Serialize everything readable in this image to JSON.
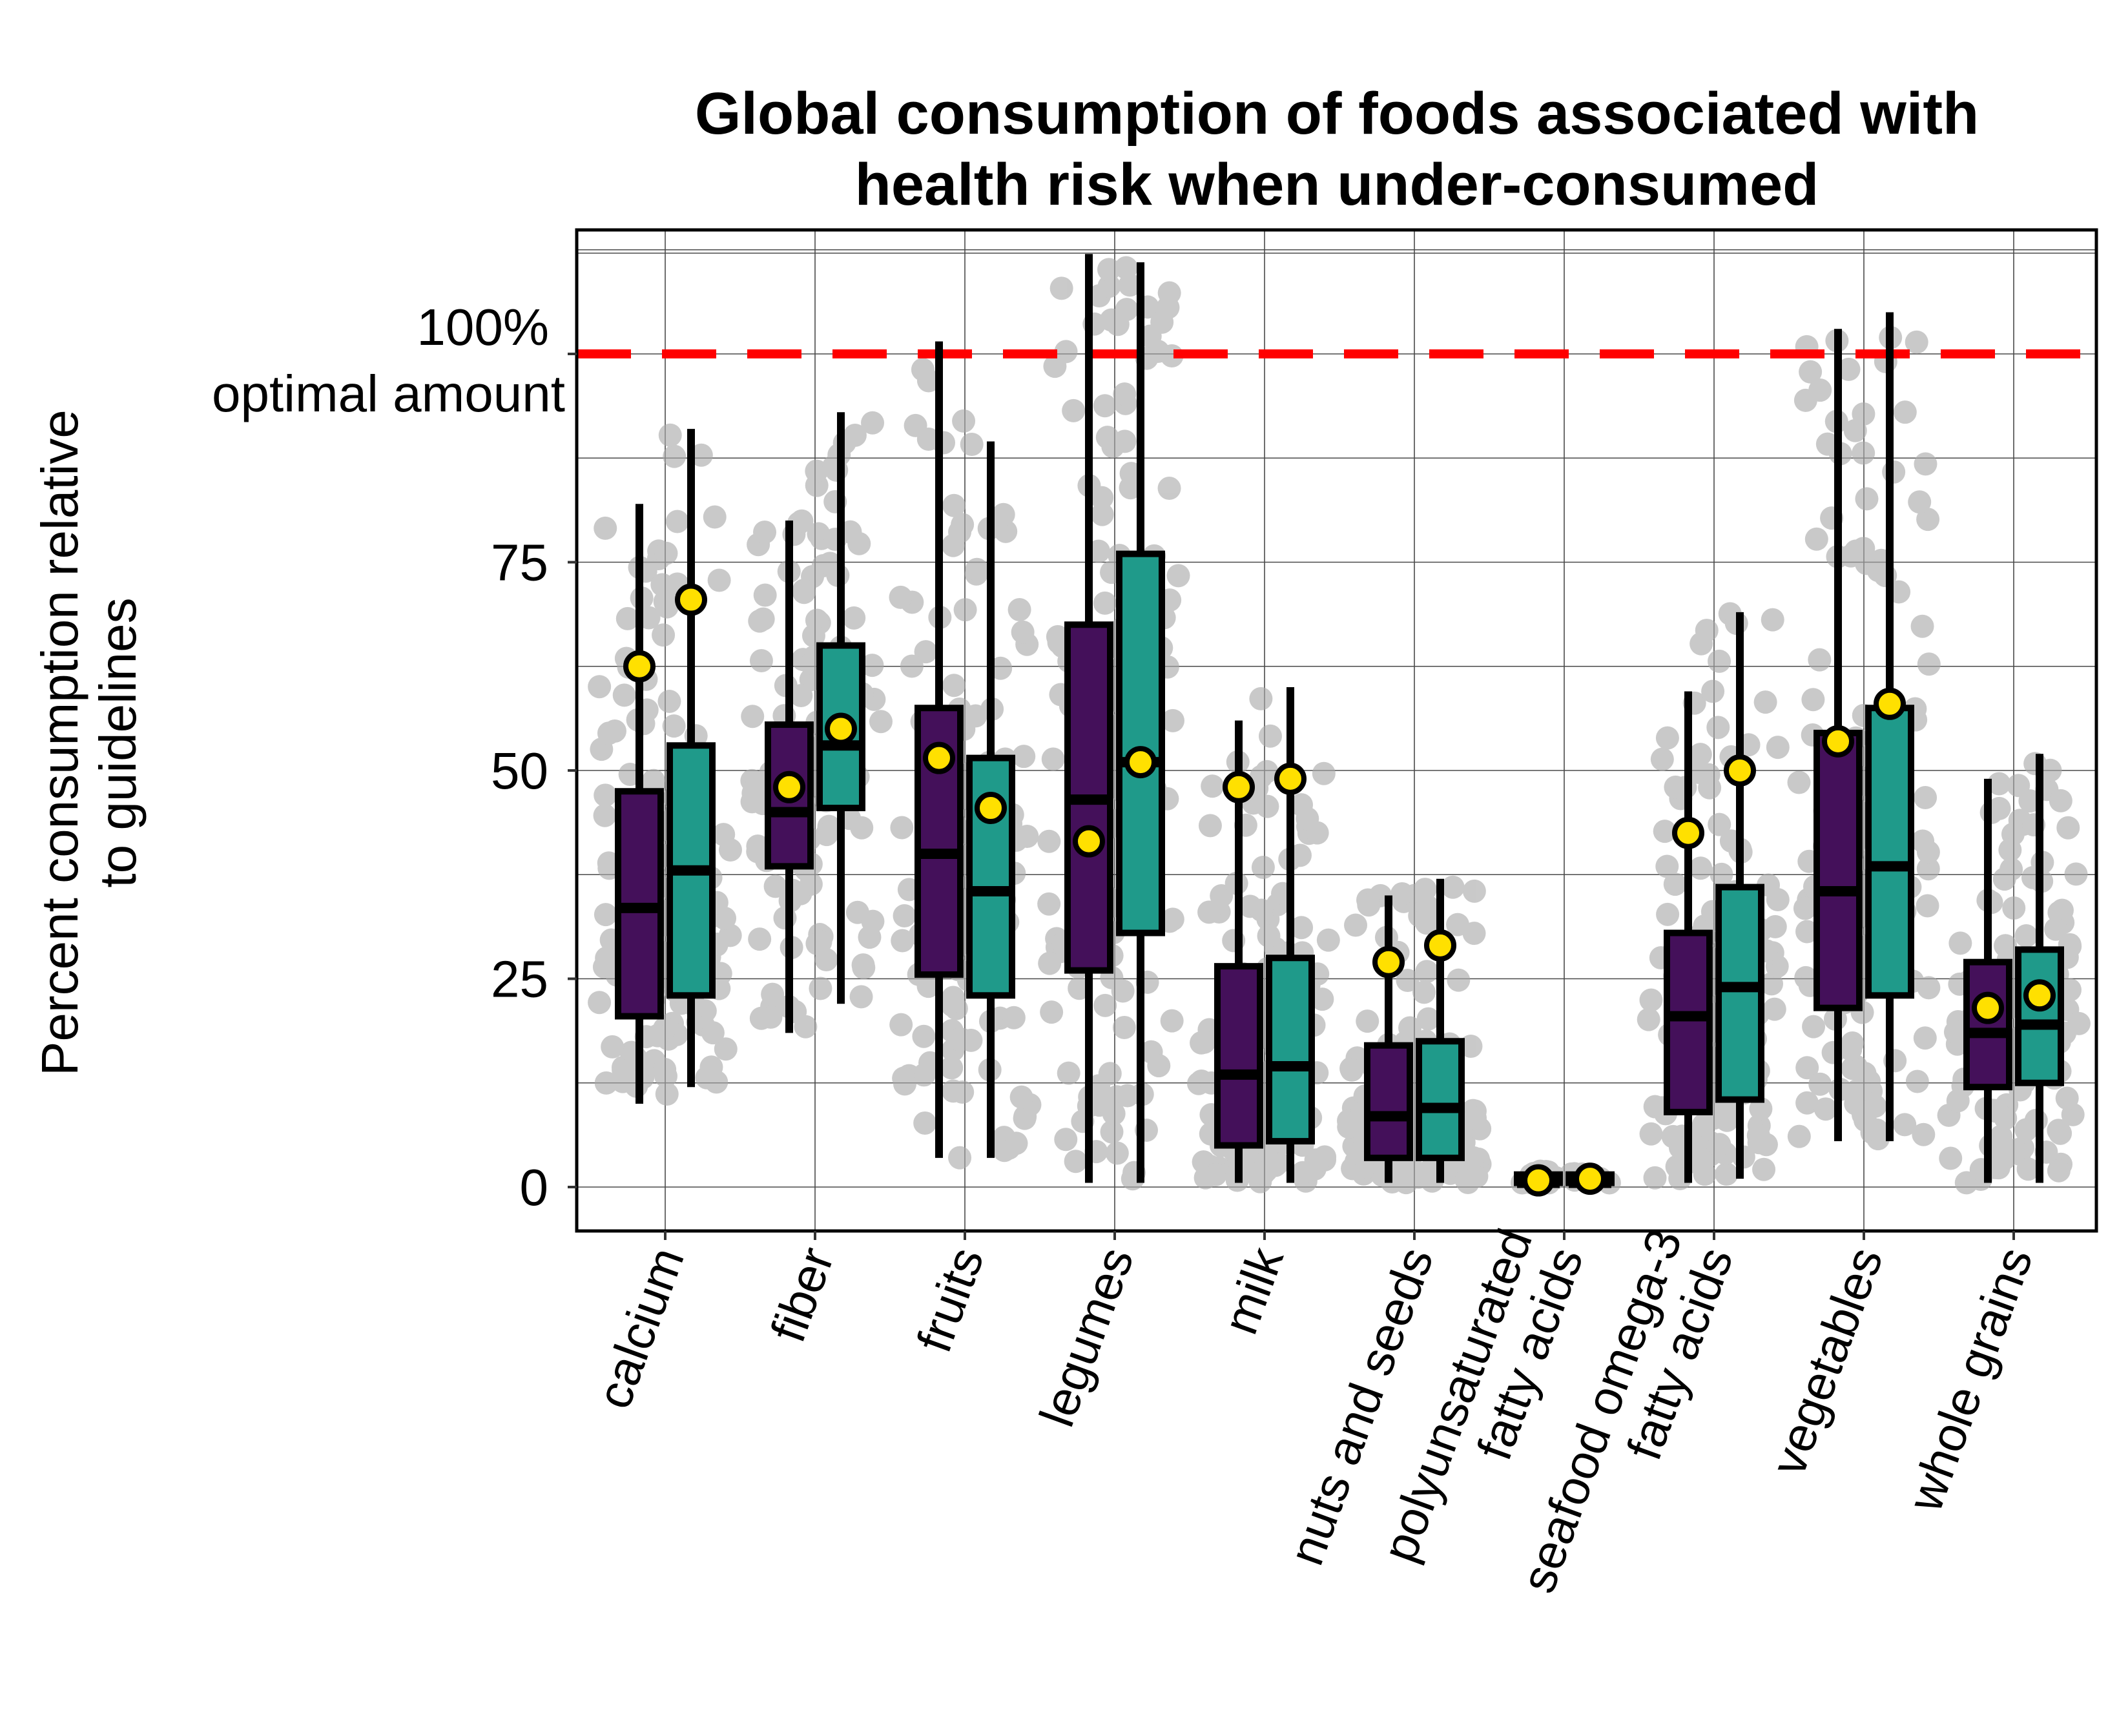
{
  "chart_data": {
    "type": "box",
    "title": [
      "Global consumption of foods associated with",
      "health risk when under-consumed"
    ],
    "ylabel": [
      "Percent consumption relative",
      "to guidelines"
    ],
    "ylim": [
      -10,
      118
    ],
    "yticks": [
      {
        "value": 0,
        "label": "0"
      },
      {
        "value": 25,
        "label": "25"
      },
      {
        "value": 50,
        "label": "50"
      },
      {
        "value": 75,
        "label": "75"
      }
    ],
    "reference_line": {
      "value": 100,
      "label_line1": "100%",
      "label_line2": "optimal amount",
      "color": "#ff0000"
    },
    "grid": true,
    "colors": {
      "series1": "#44105a",
      "series2": "#1f9a8a",
      "mean_marker": "#ffe000",
      "points": "#a9a9a9",
      "reference": "#ff0000"
    },
    "categories": [
      [
        "calcium"
      ],
      [
        "fiber"
      ],
      [
        "fruits"
      ],
      [
        "legumes"
      ],
      [
        "milk"
      ],
      [
        "nuts and seeds"
      ],
      [
        "polyunsaturated",
        "fatty acids"
      ],
      [
        "seafood omega-3",
        "fatty acids"
      ],
      [
        "vegetables"
      ],
      [
        "whole grains"
      ]
    ],
    "series": [
      {
        "color": "#44105a",
        "boxes": [
          {
            "lo": 10,
            "q1": 20.5,
            "median": 33.5,
            "q3": 47.5,
            "hi": 82,
            "mean": 62.5
          },
          {
            "lo": 18.5,
            "q1": 38.5,
            "median": 45,
            "q3": 55.5,
            "hi": 80,
            "mean": 48
          },
          {
            "lo": 3.5,
            "q1": 25.5,
            "median": 40,
            "q3": 57.5,
            "hi": 101.5,
            "mean": 51.5
          },
          {
            "lo": 0.5,
            "q1": 26,
            "median": 46.5,
            "q3": 67.5,
            "hi": 112,
            "mean": 41.5
          },
          {
            "lo": 0.5,
            "q1": 5,
            "median": 13.5,
            "q3": 26.5,
            "hi": 56,
            "mean": 48
          },
          {
            "lo": 0.5,
            "q1": 3.5,
            "median": 8.5,
            "q3": 17,
            "hi": 35,
            "mean": 27
          },
          {
            "lo": 0.5,
            "q1": 0.5,
            "median": 0.5,
            "q3": 1.5,
            "hi": 2,
            "mean": 0.8
          },
          {
            "lo": 0.5,
            "q1": 9,
            "median": 20.5,
            "q3": 30.5,
            "hi": 59.5,
            "mean": 42.5
          },
          {
            "lo": 5.5,
            "q1": 21.5,
            "median": 35.5,
            "q3": 54.5,
            "hi": 103,
            "mean": 53.5
          },
          {
            "lo": 0.5,
            "q1": 12,
            "median": 18.5,
            "q3": 27,
            "hi": 49,
            "mean": 21.5
          }
        ]
      },
      {
        "color": "#1f9a8a",
        "boxes": [
          {
            "lo": 12,
            "q1": 23,
            "median": 38,
            "q3": 53,
            "hi": 91,
            "mean": 70.5
          },
          {
            "lo": 22,
            "q1": 45.5,
            "median": 53,
            "q3": 65,
            "hi": 93,
            "mean": 55
          },
          {
            "lo": 3.5,
            "q1": 23,
            "median": 35.5,
            "q3": 51.5,
            "hi": 89.5,
            "mean": 45.5
          },
          {
            "lo": 0.5,
            "q1": 30.5,
            "median": 51,
            "q3": 76,
            "hi": 111,
            "mean": 51
          },
          {
            "lo": 0.5,
            "q1": 5.5,
            "median": 14.5,
            "q3": 27.5,
            "hi": 60,
            "mean": 49
          },
          {
            "lo": 0.5,
            "q1": 3.5,
            "median": 9.5,
            "q3": 17.5,
            "hi": 37,
            "mean": 29
          },
          {
            "lo": 0.5,
            "q1": 0.5,
            "median": 0.5,
            "q3": 1.5,
            "hi": 2,
            "mean": 1
          },
          {
            "lo": 1,
            "q1": 10.5,
            "median": 24,
            "q3": 36,
            "hi": 69,
            "mean": 50
          },
          {
            "lo": 5.5,
            "q1": 23,
            "median": 38.5,
            "q3": 57.5,
            "hi": 105,
            "mean": 58
          },
          {
            "lo": 0.5,
            "q1": 12.5,
            "median": 19.5,
            "q3": 28.5,
            "hi": 52,
            "mean": 23
          }
        ]
      }
    ]
  }
}
